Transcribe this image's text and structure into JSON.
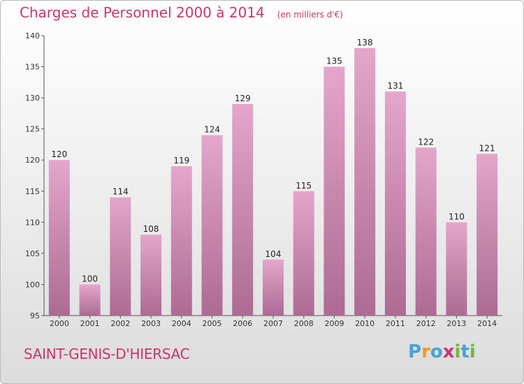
{
  "title": "Charges de Personnel 2000 à 2014",
  "subtitle": "(en milliers d'€)",
  "town": "SAINT-GENIS-D'HIERSAC",
  "logo": {
    "letters": [
      "P",
      "r",
      "o",
      "x",
      "i",
      "t",
      "i"
    ],
    "colors": [
      "#4aa0d9",
      "#f29a1f",
      "#4aa0d9",
      "#c9356e",
      "#73b83a",
      "#4aa0d9",
      "#73b83a"
    ]
  },
  "colors": {
    "bar_top": "#e4a6ca",
    "bar_bottom": "#ad6b93",
    "title": "#c9356e"
  },
  "chart_data": {
    "type": "bar",
    "categories": [
      "2000",
      "2001",
      "2002",
      "2003",
      "2004",
      "2005",
      "2006",
      "2007",
      "2008",
      "2009",
      "2010",
      "2011",
      "2012",
      "2013",
      "2014"
    ],
    "values": [
      120,
      100,
      114,
      108,
      119,
      124,
      129,
      104,
      115,
      135,
      138,
      131,
      122,
      110,
      121
    ],
    "title": "Charges de Personnel 2000 à 2014",
    "subtitle": "(en milliers d'€)",
    "xlabel": "",
    "ylabel": "",
    "ylim": [
      95,
      140
    ],
    "yticks": [
      95,
      100,
      105,
      110,
      115,
      120,
      125,
      130,
      135,
      140
    ],
    "grid": false,
    "legend": "none"
  }
}
